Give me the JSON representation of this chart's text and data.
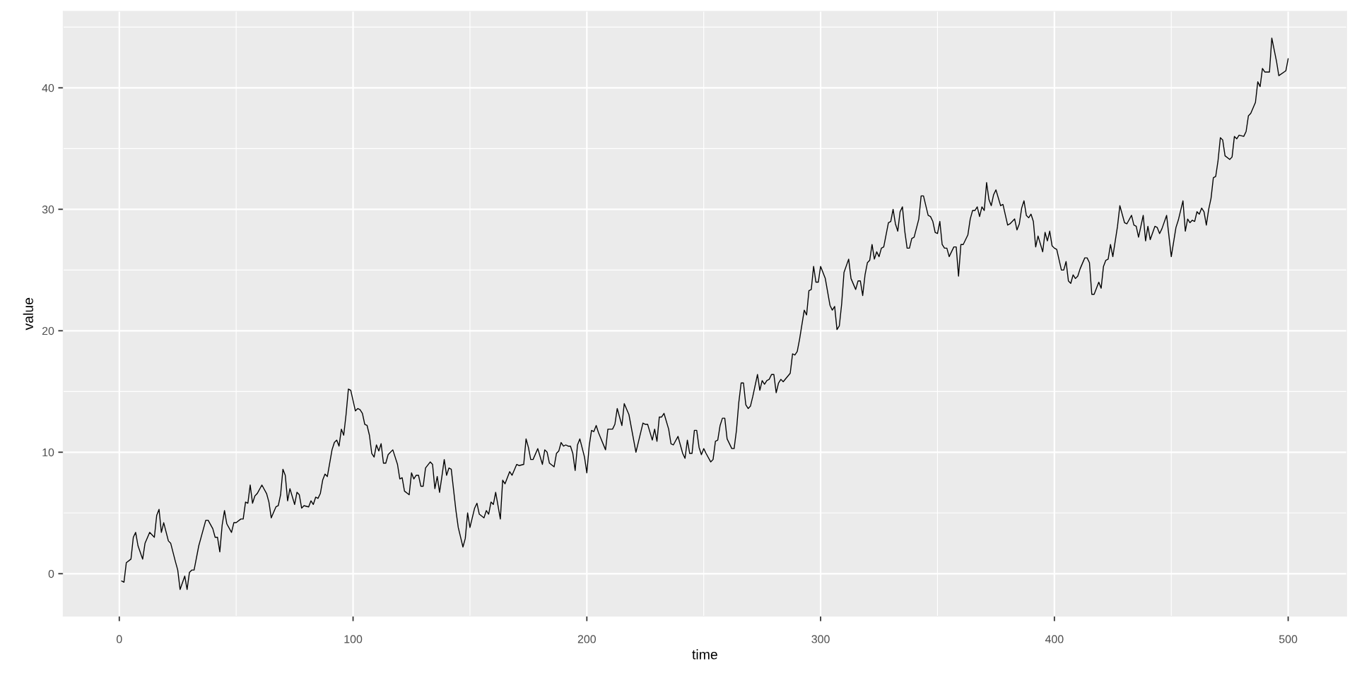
{
  "chart_data": {
    "type": "line",
    "xlabel": "time",
    "ylabel": "value",
    "x": [
      1,
      2,
      3,
      5,
      6,
      7,
      8,
      10,
      11,
      13,
      15,
      16,
      17,
      18,
      19,
      21,
      22,
      24,
      25,
      26,
      28,
      29,
      30,
      31,
      32,
      34,
      37,
      38,
      40,
      41,
      42,
      43,
      44,
      45,
      46,
      48,
      49,
      50,
      52,
      53,
      54,
      55,
      56,
      57,
      58,
      59,
      61,
      63,
      64,
      65,
      67,
      68,
      69,
      70,
      71,
      72,
      73,
      75,
      76,
      77,
      78,
      79,
      81,
      82,
      83,
      84,
      85,
      86,
      87,
      88,
      89,
      90,
      91,
      92,
      93,
      94,
      95,
      96,
      97,
      98,
      99,
      101,
      102,
      103,
      104,
      105,
      106,
      107,
      108,
      109,
      110,
      111,
      112,
      113,
      114,
      115,
      117,
      119,
      120,
      121,
      122,
      124,
      125,
      126,
      127,
      128,
      129,
      130,
      131,
      133,
      134,
      135,
      136,
      137,
      138,
      139,
      140,
      141,
      142,
      143,
      144,
      145,
      147,
      148,
      149,
      150,
      152,
      153,
      154,
      156,
      157,
      158,
      159,
      160,
      161,
      163,
      164,
      165,
      167,
      168,
      170,
      171,
      173,
      174,
      175,
      176,
      177,
      179,
      181,
      182,
      183,
      184,
      186,
      187,
      188,
      189,
      190,
      191,
      192,
      193,
      194,
      195,
      196,
      197,
      199,
      200,
      201,
      202,
      203,
      204,
      205,
      208,
      209,
      211,
      212,
      213,
      215,
      216,
      218,
      221,
      224,
      225,
      226,
      228,
      229,
      230,
      231,
      232,
      233,
      235,
      236,
      237,
      239,
      241,
      242,
      243,
      244,
      245,
      246,
      247,
      248,
      249,
      250,
      251,
      253,
      254,
      255,
      256,
      257,
      258,
      259,
      260,
      262,
      263,
      264,
      265,
      266,
      267,
      268,
      269,
      270,
      271,
      273,
      274,
      275,
      276,
      277,
      278,
      279,
      280,
      281,
      282,
      283,
      284,
      287,
      288,
      289,
      290,
      291,
      293,
      294,
      295,
      296,
      297,
      298,
      299,
      300,
      302,
      304,
      305,
      306,
      307,
      308,
      309,
      310,
      312,
      313,
      315,
      316,
      317,
      318,
      319,
      320,
      321,
      322,
      323,
      324,
      325,
      326,
      327,
      329,
      330,
      331,
      332,
      333,
      334,
      335,
      336,
      337,
      338,
      339,
      340,
      342,
      343,
      344,
      346,
      347,
      348,
      349,
      350,
      351,
      352,
      353,
      354,
      355,
      357,
      358,
      359,
      360,
      361,
      363,
      364,
      365,
      366,
      367,
      368,
      369,
      370,
      371,
      372,
      373,
      374,
      375,
      377,
      378,
      380,
      381,
      383,
      384,
      385,
      386,
      387,
      388,
      389,
      390,
      391,
      392,
      393,
      395,
      396,
      397,
      398,
      399,
      400,
      401,
      403,
      404,
      405,
      406,
      407,
      408,
      409,
      410,
      411,
      413,
      414,
      415,
      416,
      417,
      419,
      420,
      421,
      422,
      423,
      424,
      425,
      427,
      428,
      430,
      431,
      433,
      434,
      435,
      436,
      438,
      439,
      440,
      441,
      443,
      444,
      445,
      446,
      448,
      450,
      452,
      453,
      455,
      456,
      457,
      458,
      459,
      460,
      461,
      462,
      463,
      464,
      465,
      466,
      467,
      468,
      469,
      470,
      471,
      472,
      473,
      475,
      476,
      477,
      478,
      479,
      481,
      482,
      483,
      484,
      486,
      487,
      488,
      489,
      490,
      492,
      493,
      495,
      496,
      499,
      500
    ],
    "series": [
      {
        "color": "#000000",
        "values": [
          -0.6,
          -0.7,
          0.9,
          1.2,
          3.0,
          3.4,
          2.3,
          1.2,
          2.5,
          3.4,
          3.0,
          4.8,
          5.3,
          3.4,
          4.2,
          2.7,
          2.5,
          1.0,
          0.3,
          -1.3,
          -0.2,
          -1.3,
          0.1,
          0.3,
          0.3,
          2.3,
          4.4,
          4.4,
          3.7,
          3.0,
          3.0,
          1.8,
          4.0,
          5.2,
          4.1,
          3.4,
          4.2,
          4.2,
          4.5,
          4.5,
          5.9,
          5.8,
          7.3,
          5.8,
          6.4,
          6.6,
          7.3,
          6.6,
          5.9,
          4.6,
          5.5,
          5.6,
          6.5,
          8.6,
          8.1,
          6.0,
          7.0,
          5.7,
          6.7,
          6.5,
          5.4,
          5.6,
          5.5,
          6.0,
          5.7,
          6.3,
          6.2,
          6.6,
          7.7,
          8.2,
          8.0,
          9.1,
          10.2,
          10.8,
          11.0,
          10.5,
          11.9,
          11.4,
          13.1,
          15.2,
          15.1,
          13.4,
          13.6,
          13.5,
          13.2,
          12.3,
          12.2,
          11.4,
          9.9,
          9.6,
          10.6,
          10.1,
          10.7,
          9.1,
          9.1,
          9.8,
          10.2,
          9.0,
          7.8,
          7.9,
          6.8,
          6.5,
          8.3,
          7.8,
          8.1,
          8.1,
          7.2,
          7.2,
          8.7,
          9.2,
          9.0,
          7.0,
          8.0,
          6.7,
          8.0,
          9.4,
          8.1,
          8.7,
          8.6,
          6.9,
          5.2,
          3.8,
          2.2,
          2.9,
          5.0,
          3.8,
          5.4,
          5.8,
          4.9,
          4.6,
          5.2,
          4.9,
          5.9,
          5.7,
          6.7,
          4.5,
          7.7,
          7.4,
          8.4,
          8.1,
          9.0,
          8.9,
          9.0,
          11.1,
          10.4,
          9.4,
          9.4,
          10.3,
          9.0,
          10.2,
          10.0,
          9.1,
          8.8,
          9.9,
          10.1,
          10.8,
          10.5,
          10.6,
          10.5,
          10.5,
          9.9,
          8.5,
          10.6,
          11.1,
          9.6,
          8.3,
          10.5,
          11.8,
          11.7,
          12.2,
          11.6,
          10.2,
          11.9,
          11.9,
          12.3,
          13.6,
          12.2,
          14.0,
          13.1,
          10.0,
          12.4,
          12.3,
          12.3,
          11.0,
          11.9,
          10.9,
          12.9,
          12.9,
          13.2,
          11.9,
          10.7,
          10.6,
          11.3,
          9.9,
          9.5,
          11.0,
          9.9,
          9.9,
          11.8,
          11.8,
          10.4,
          9.8,
          10.3,
          9.9,
          9.2,
          9.4,
          10.9,
          11.0,
          12.2,
          12.8,
          12.8,
          11.1,
          10.3,
          10.3,
          11.8,
          14.1,
          15.7,
          15.7,
          13.9,
          13.6,
          13.8,
          14.6,
          16.4,
          15.1,
          15.9,
          15.6,
          15.9,
          16.0,
          16.4,
          16.4,
          14.9,
          15.7,
          16.0,
          15.8,
          16.5,
          18.1,
          18.0,
          18.3,
          19.3,
          21.7,
          21.3,
          23.3,
          23.4,
          25.3,
          24.0,
          24.0,
          25.3,
          24.3,
          22.1,
          21.7,
          22.0,
          20.1,
          20.4,
          22.2,
          24.8,
          25.9,
          24.3,
          23.4,
          24.1,
          24.1,
          22.9,
          24.6,
          25.6,
          25.8,
          27.1,
          25.9,
          26.5,
          26.1,
          26.8,
          26.9,
          28.9,
          29.0,
          30.0,
          28.8,
          28.2,
          29.8,
          30.2,
          28.2,
          26.8,
          26.8,
          27.6,
          27.7,
          29.2,
          31.1,
          31.1,
          29.5,
          29.4,
          29.0,
          28.1,
          28.0,
          29.0,
          27.1,
          26.8,
          26.8,
          26.1,
          26.9,
          26.9,
          24.5,
          27.1,
          27.1,
          27.9,
          29.2,
          29.9,
          29.9,
          30.2,
          29.4,
          30.2,
          29.9,
          32.2,
          30.8,
          30.3,
          31.2,
          31.6,
          30.3,
          30.4,
          28.7,
          28.8,
          29.2,
          28.3,
          28.8,
          30.1,
          30.7,
          29.5,
          29.3,
          29.6,
          29.0,
          26.9,
          27.8,
          26.5,
          28.1,
          27.4,
          28.2,
          27.0,
          26.8,
          26.7,
          25.0,
          25.0,
          25.7,
          24.1,
          23.9,
          24.6,
          24.3,
          24.5,
          25.1,
          26.0,
          26.0,
          25.6,
          23.0,
          23.0,
          24.0,
          23.5,
          25.3,
          25.8,
          25.9,
          27.1,
          26.1,
          28.6,
          30.3,
          28.9,
          28.8,
          29.5,
          28.7,
          28.6,
          27.7,
          29.5,
          27.4,
          28.6,
          27.5,
          28.6,
          28.5,
          28.0,
          28.4,
          29.5,
          26.1,
          28.5,
          29.1,
          30.7,
          28.2,
          29.2,
          28.9,
          29.1,
          29.0,
          29.8,
          29.6,
          30.1,
          29.8,
          28.7,
          30.0,
          30.9,
          32.6,
          32.7,
          34.0,
          35.9,
          35.7,
          34.4,
          34.1,
          34.3,
          36.0,
          35.8,
          36.1,
          36.0,
          36.4,
          37.7,
          37.9,
          38.8,
          40.5,
          40.1,
          41.6,
          41.3,
          41.3,
          44.1,
          42.2,
          41.0,
          41.4,
          42.4
        ]
      }
    ],
    "xlim": [
      -24,
      525
    ],
    "xticks": [
      0,
      100,
      200,
      300,
      400,
      500
    ],
    "ylim": [
      -3.5,
      46.3
    ],
    "yticks": [
      0,
      10,
      20,
      30,
      40
    ],
    "grid": true,
    "line_style": "solid"
  }
}
